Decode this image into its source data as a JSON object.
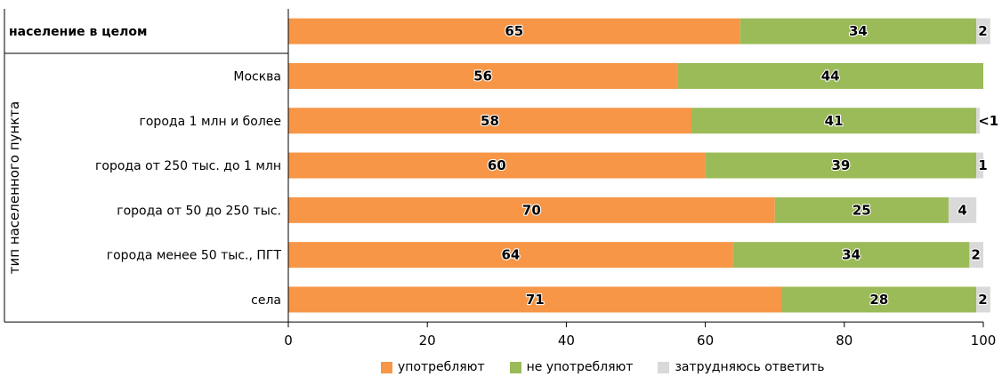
{
  "chart_data": {
    "type": "bar",
    "orientation": "horizontal",
    "stacked": true,
    "title": "",
    "categories": [
      "население в целом",
      "Москва",
      "города 1 млн и более",
      "города от 250 тыс. до 1 млн",
      "города от 50 до 250 тыс.",
      "города менее 50 тыс., ПГТ",
      "села"
    ],
    "category_group_label": "тип населенного пункта",
    "series": [
      {
        "name": "употребляют",
        "color": "#F79646",
        "values": [
          65,
          56,
          58,
          60,
          70,
          64,
          71
        ],
        "labels": [
          "65",
          "56",
          "58",
          "60",
          "70",
          "64",
          "71"
        ]
      },
      {
        "name": "не употребляют",
        "color": "#9BBB59",
        "values": [
          34,
          44,
          41,
          39,
          25,
          34,
          28
        ],
        "labels": [
          "34",
          "44",
          "41",
          "39",
          "25",
          "34",
          "28"
        ]
      },
      {
        "name": "затрудняюсь ответить",
        "color": "#D9D9D9",
        "values": [
          2,
          0,
          0.5,
          1,
          4,
          2,
          2
        ],
        "labels": [
          "2",
          "",
          "<1",
          "1",
          "4",
          "2",
          "2"
        ]
      }
    ],
    "xlim": [
      0,
      100
    ],
    "xticks": [
      "0",
      "20",
      "40",
      "60",
      "80",
      "100"
    ],
    "grid": false,
    "legend_position": "bottom"
  }
}
